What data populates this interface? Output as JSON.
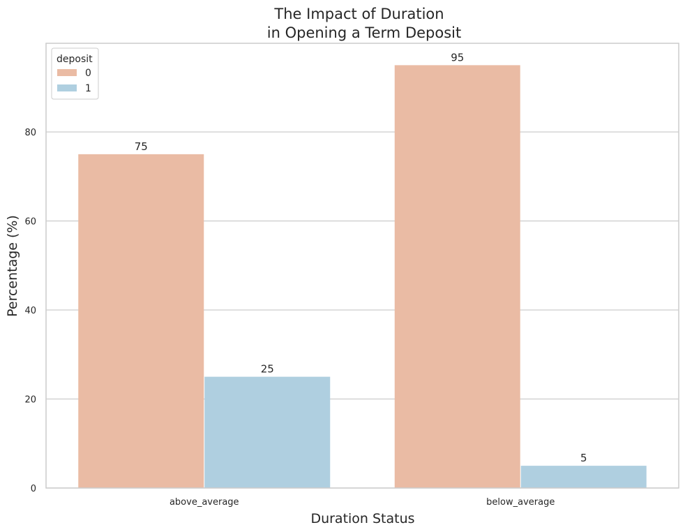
{
  "chart_data": {
    "type": "bar",
    "title_lines": [
      "The Impact of Duration",
      "in Opening a Term Deposit"
    ],
    "xlabel": "Duration Status",
    "ylabel": "Percentage (%)",
    "categories": [
      "above_average",
      "below_average"
    ],
    "series": [
      {
        "name": "0",
        "values": [
          75,
          95
        ],
        "color": "#eabba4"
      },
      {
        "name": "1",
        "values": [
          25,
          5
        ],
        "color": "#afcfe0"
      }
    ],
    "data_labels": [
      [
        "75",
        "95"
      ],
      [
        "25",
        "5"
      ]
    ],
    "ylim": [
      0,
      100
    ],
    "yticks": [
      0,
      20,
      40,
      60,
      80
    ],
    "grid": "horizontal",
    "legend": {
      "title": "deposit",
      "placement": "top-left"
    }
  }
}
